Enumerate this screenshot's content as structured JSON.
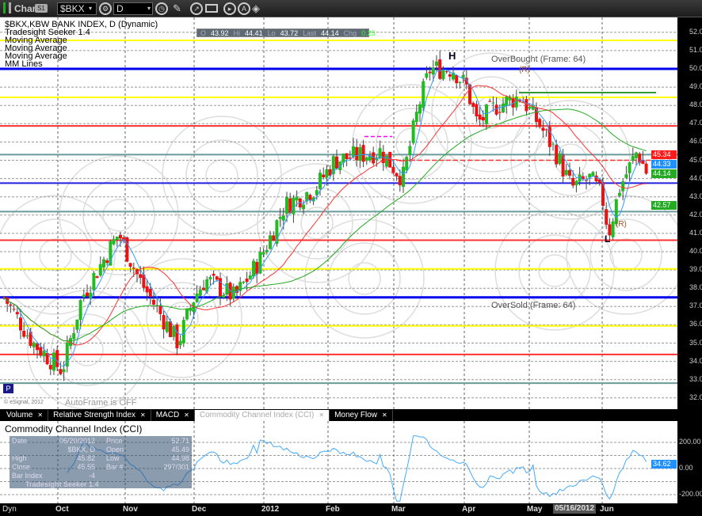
{
  "window": {
    "title": "Chart",
    "link_badge": "S1",
    "symbol": "$BKX",
    "interval": "D",
    "toolbar_icons": [
      "gear-icon",
      "clock-icon",
      "pencil-icon",
      "cursor-icon",
      "screen-icon",
      "play-icon",
      "a-icon",
      "eraser-icon"
    ]
  },
  "legend": {
    "title": "$BKX,KBW BANK INDEX, D (Dynamic)",
    "items": [
      "Tradesight Seeker 1.4",
      "Moving Average",
      "Moving Average",
      "Moving Average",
      "MM Lines"
    ]
  },
  "ohlc": {
    "o_label": "O",
    "o": "43.92",
    "h_label": "Hi",
    "h": "44.41",
    "l_label": "Lo",
    "l": "43.72",
    "last_label": "Last",
    "last": "44.14",
    "chg_label": "Chg",
    "chg": "0.25"
  },
  "annotations": {
    "overbought": "OverBought (Frame: 64)",
    "oversold": "OverSold (Frame: 64)",
    "head": "H",
    "low": "L",
    "r1": "(R)",
    "r2": "(R)",
    "autoframe": "AutoFrame is OFF",
    "copyright": "© eSignal, 2012",
    "p_button": "P"
  },
  "price_axis": {
    "ticks": [
      "52.00",
      "51.00",
      "50.00",
      "49.00",
      "48.00",
      "47.00",
      "46.00",
      "45.00",
      "44.00",
      "43.00",
      "42.00",
      "41.00",
      "40.00",
      "39.00",
      "38.00",
      "37.00",
      "36.00",
      "35.00",
      "34.00",
      "33.00",
      "32.00"
    ],
    "badges": [
      {
        "value": "45.34",
        "color": "#ff1a1a"
      },
      {
        "value": "44.33",
        "color": "#1e90ff"
      },
      {
        "value": "44.14",
        "color": "#22aa22"
      },
      {
        "value": "42.57",
        "color": "#22aa22"
      }
    ]
  },
  "tabs": [
    {
      "label": "Volume"
    },
    {
      "label": "Relative Strength Index"
    },
    {
      "label": "MACD"
    },
    {
      "label": "Commodity Channel Index (CCI)",
      "active": true
    },
    {
      "label": "Money Flow"
    }
  ],
  "cci": {
    "title": "Commodity Channel Index (CCI)",
    "ticks": [
      "200.00",
      "0.00",
      "-200.00"
    ],
    "badge": "34.62"
  },
  "tooltip": {
    "rows": [
      [
        "Date",
        "06/20/2012"
      ],
      [
        "Price",
        "52.71"
      ],
      [
        "",
        "$BKX, D"
      ],
      [
        "Open",
        "45.49"
      ],
      [
        "High",
        "45.82"
      ],
      [
        "Low",
        "44.98"
      ],
      [
        "Close",
        "45.55"
      ],
      [
        "Bar #",
        "297/301"
      ],
      [
        "Bar Index",
        "-4"
      ]
    ],
    "footer": "Tradesight Seeker 1.4",
    "dyn": "Dyn"
  },
  "date_axis": {
    "labels": [
      "Oct",
      "Nov",
      "Dec",
      "2012",
      "Feb",
      "Mar",
      "Apr",
      "May",
      "Jun"
    ],
    "cursor": "05/16/2012"
  },
  "chart_data": {
    "type": "candlestick",
    "ylim": [
      32,
      52.5
    ],
    "close_path": [
      [
        "2011-09-09",
        37.5
      ],
      [
        "2011-09-21",
        35
      ],
      [
        "2011-10-03",
        33.5
      ],
      [
        "2011-10-12",
        37.5
      ],
      [
        "2011-10-29",
        41
      ],
      [
        "2011-11-07",
        38.5
      ],
      [
        "2011-11-24",
        35
      ],
      [
        "2011-12-01",
        37.5
      ],
      [
        "2011-12-06",
        38.5
      ],
      [
        "2011-12-19",
        37.5
      ],
      [
        "2011-12-30",
        39.5
      ],
      [
        "2012-01-11",
        42.5
      ],
      [
        "2012-01-26",
        43.5
      ],
      [
        "2012-02-04",
        45
      ],
      [
        "2012-02-24",
        45.5
      ],
      [
        "2012-03-05",
        44
      ],
      [
        "2012-03-12",
        48
      ],
      [
        "2012-03-17",
        50
      ],
      [
        "2012-03-27",
        50
      ],
      [
        "2012-04-02",
        49
      ],
      [
        "2012-04-07",
        47
      ],
      [
        "2012-04-16",
        48
      ],
      [
        "2012-04-27",
        48.5
      ],
      [
        "2012-05-05",
        47
      ],
      [
        "2012-05-12",
        45.5
      ],
      [
        "2012-05-19",
        43.5
      ],
      [
        "2012-05-27",
        44
      ],
      [
        "2012-06-01",
        43
      ],
      [
        "2012-06-04",
        41
      ],
      [
        "2012-06-09",
        43.5
      ],
      [
        "2012-06-17",
        45.5
      ],
      [
        "2012-06-22",
        44.14
      ]
    ],
    "levels": [
      {
        "price": 51.56,
        "color": "#ffff00"
      },
      {
        "price": 50.0,
        "color": "#0000ee"
      },
      {
        "price": 48.44,
        "color": "#ffff00"
      },
      {
        "price": 46.88,
        "color": "#ff3030"
      },
      {
        "price": 45.31,
        "color": "#6a9a9a"
      },
      {
        "price": 43.75,
        "color": "#2020dd"
      },
      {
        "price": 42.19,
        "color": "#6a9a9a"
      },
      {
        "price": 40.63,
        "color": "#ff3030"
      },
      {
        "price": 39.06,
        "color": "#ffff00"
      },
      {
        "price": 37.5,
        "color": "#0000ee"
      },
      {
        "price": 35.94,
        "color": "#ffff00"
      },
      {
        "price": 34.38,
        "color": "#ff3030"
      },
      {
        "price": 32.81,
        "color": "#6a9a9a"
      }
    ],
    "colors": {
      "up": "#22bb22",
      "down": "#ee1111",
      "ma_fast": "#3399ff",
      "ma_mid": "#ff3333",
      "ma_slow": "#22aa22",
      "cci": "#44aaff"
    }
  }
}
